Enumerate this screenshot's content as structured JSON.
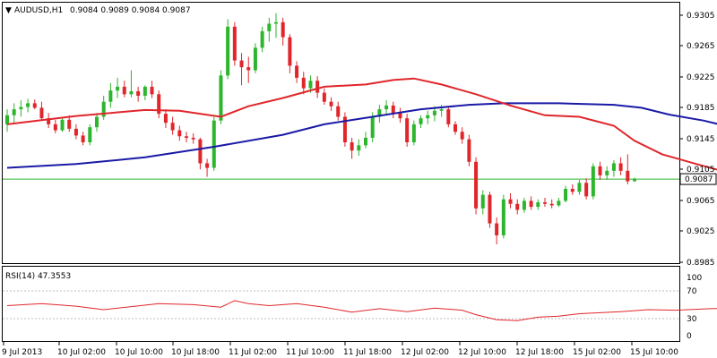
{
  "header": {
    "arrow": "▼",
    "symbol_label": "AUDUSD,H1",
    "ohlc": "0.9084 0.9089 0.9084 0.9087"
  },
  "price_axis": {
    "ticks": [
      "0.9305",
      "0.9265",
      "0.9225",
      "0.9185",
      "0.9145",
      "0.9105",
      "0.9065",
      "0.9025",
      "0.8985"
    ],
    "current_price": "0.9087"
  },
  "rsi_panel": {
    "title": "RSI(14) 47.3553",
    "ticks": [
      "100",
      "70",
      "30",
      "0"
    ]
  },
  "time_axis": {
    "labels": [
      "9 Jul 2013",
      "10 Jul 02:00",
      "10 Jul 10:00",
      "10 Jul 18:00",
      "11 Jul 02:00",
      "11 Jul 10:00",
      "11 Jul 18:00",
      "12 Jul 02:00",
      "12 Jul 10:00",
      "12 Jul 18:00",
      "15 Jul 02:00",
      "15 Jul 10:00"
    ]
  },
  "colors": {
    "bull": "#2db52d",
    "bear": "#e0262b",
    "ma_fast": "#e0262b",
    "ma_slow": "#1a1aa6",
    "rsi_line": "#e0262b",
    "price_line": "#2db52d"
  },
  "chart_data": {
    "type": "candlestick",
    "price_range": [
      0.8975,
      0.9322
    ],
    "rsi_range": [
      0,
      100
    ],
    "rsi_levels": [
      70,
      30
    ],
    "current_price": 0.9087,
    "candles": [
      [
        0.916,
        0.918,
        0.915,
        0.9172
      ],
      [
        0.9172,
        0.9188,
        0.9162,
        0.918
      ],
      [
        0.918,
        0.9192,
        0.917,
        0.9183
      ],
      [
        0.9183,
        0.9194,
        0.9176,
        0.9188
      ],
      [
        0.9188,
        0.9193,
        0.918,
        0.9182
      ],
      [
        0.9182,
        0.919,
        0.9166,
        0.9168
      ],
      [
        0.9168,
        0.9175,
        0.9155,
        0.916
      ],
      [
        0.916,
        0.9166,
        0.9148,
        0.9152
      ],
      [
        0.9152,
        0.917,
        0.915,
        0.9166
      ],
      [
        0.9166,
        0.9172,
        0.915,
        0.9154
      ],
      [
        0.9154,
        0.916,
        0.914,
        0.9145
      ],
      [
        0.9145,
        0.915,
        0.9132,
        0.9136
      ],
      [
        0.9136,
        0.916,
        0.9132,
        0.9156
      ],
      [
        0.9156,
        0.9175,
        0.915,
        0.917
      ],
      [
        0.917,
        0.9198,
        0.9166,
        0.919
      ],
      [
        0.919,
        0.9215,
        0.9182,
        0.9205
      ],
      [
        0.9205,
        0.9222,
        0.9195,
        0.921
      ],
      [
        0.921,
        0.9218,
        0.9196,
        0.92
      ],
      [
        0.92,
        0.9232,
        0.9196,
        0.9204
      ],
      [
        0.9204,
        0.921,
        0.919,
        0.9198
      ],
      [
        0.9198,
        0.9212,
        0.9192,
        0.921
      ],
      [
        0.921,
        0.9218,
        0.9195,
        0.92
      ],
      [
        0.92,
        0.9205,
        0.9168,
        0.9174
      ],
      [
        0.9174,
        0.918,
        0.9155,
        0.9162
      ],
      [
        0.9162,
        0.917,
        0.9146,
        0.9152
      ],
      [
        0.9152,
        0.9158,
        0.9138,
        0.9144
      ],
      [
        0.9144,
        0.915,
        0.9136,
        0.9142
      ],
      [
        0.9142,
        0.9148,
        0.9134,
        0.914
      ],
      [
        0.914,
        0.9142,
        0.91,
        0.9108
      ],
      [
        0.9108,
        0.9114,
        0.909,
        0.9102
      ],
      [
        0.9102,
        0.917,
        0.9098,
        0.9165
      ],
      [
        0.9165,
        0.9232,
        0.916,
        0.9225
      ],
      [
        0.9225,
        0.93,
        0.922,
        0.929
      ],
      [
        0.929,
        0.9296,
        0.9238,
        0.9245
      ],
      [
        0.9245,
        0.9255,
        0.9212,
        0.9236
      ],
      [
        0.9236,
        0.925,
        0.9215,
        0.9232
      ],
      [
        0.9232,
        0.9268,
        0.9228,
        0.9262
      ],
      [
        0.9262,
        0.929,
        0.9256,
        0.9284
      ],
      [
        0.9284,
        0.9302,
        0.927,
        0.9294
      ],
      [
        0.9294,
        0.9308,
        0.9275,
        0.9296
      ],
      [
        0.9296,
        0.9302,
        0.9265,
        0.9276
      ],
      [
        0.9276,
        0.928,
        0.9228,
        0.9238
      ],
      [
        0.9238,
        0.9244,
        0.9215,
        0.9222
      ],
      [
        0.9222,
        0.923,
        0.92,
        0.9208
      ],
      [
        0.9208,
        0.9225,
        0.9202,
        0.9218
      ],
      [
        0.9218,
        0.9224,
        0.9195,
        0.9202
      ],
      [
        0.9202,
        0.9208,
        0.9186,
        0.919
      ],
      [
        0.919,
        0.9196,
        0.9178,
        0.9184
      ],
      [
        0.9184,
        0.919,
        0.9165,
        0.917
      ],
      [
        0.917,
        0.9176,
        0.913,
        0.9136
      ],
      [
        0.9136,
        0.9142,
        0.9114,
        0.9125
      ],
      [
        0.9125,
        0.914,
        0.9118,
        0.9132
      ],
      [
        0.9132,
        0.915,
        0.9128,
        0.9142
      ],
      [
        0.9142,
        0.9176,
        0.9136,
        0.917
      ],
      [
        0.917,
        0.9186,
        0.9162,
        0.918
      ],
      [
        0.918,
        0.9192,
        0.9172,
        0.9185
      ],
      [
        0.9185,
        0.919,
        0.9168,
        0.9175
      ],
      [
        0.9175,
        0.9182,
        0.9162,
        0.9168
      ],
      [
        0.9168,
        0.9174,
        0.913,
        0.9136
      ],
      [
        0.9136,
        0.9165,
        0.9132,
        0.916
      ],
      [
        0.916,
        0.9172,
        0.9155,
        0.9168
      ],
      [
        0.9168,
        0.9178,
        0.916,
        0.9172
      ],
      [
        0.9172,
        0.9184,
        0.9164,
        0.9178
      ],
      [
        0.9178,
        0.9186,
        0.917,
        0.918
      ],
      [
        0.918,
        0.9184,
        0.9156,
        0.916
      ],
      [
        0.916,
        0.9164,
        0.9146,
        0.915
      ],
      [
        0.915,
        0.9156,
        0.9134,
        0.914
      ],
      [
        0.914,
        0.9146,
        0.9104,
        0.911
      ],
      [
        0.911,
        0.9116,
        0.904,
        0.9048
      ],
      [
        0.9048,
        0.9072,
        0.904,
        0.9066
      ],
      [
        0.9066,
        0.907,
        0.9022,
        0.9028
      ],
      [
        0.9028,
        0.9036,
        0.9,
        0.9012
      ],
      [
        0.9012,
        0.9066,
        0.9008,
        0.906
      ],
      [
        0.906,
        0.9068,
        0.9048,
        0.9054
      ],
      [
        0.9054,
        0.906,
        0.904,
        0.9046
      ],
      [
        0.9046,
        0.9062,
        0.9042,
        0.9058
      ],
      [
        0.9058,
        0.9064,
        0.9046,
        0.905
      ],
      [
        0.905,
        0.906,
        0.9046,
        0.9056
      ],
      [
        0.9056,
        0.9062,
        0.905,
        0.9054
      ],
      [
        0.9054,
        0.906,
        0.9048,
        0.9052
      ],
      [
        0.9052,
        0.9062,
        0.905,
        0.9058
      ],
      [
        0.9058,
        0.9078,
        0.9056,
        0.9074
      ],
      [
        0.9074,
        0.908,
        0.9066,
        0.907
      ],
      [
        0.907,
        0.9086,
        0.9066,
        0.9082
      ],
      [
        0.9082,
        0.9088,
        0.906,
        0.9064
      ],
      [
        0.9064,
        0.9108,
        0.906,
        0.9104
      ],
      [
        0.9104,
        0.911,
        0.9086,
        0.9092
      ],
      [
        0.9092,
        0.9104,
        0.9086,
        0.9098
      ],
      [
        0.9098,
        0.9112,
        0.909,
        0.9108
      ],
      [
        0.9108,
        0.9116,
        0.9092,
        0.9098
      ],
      [
        0.9098,
        0.912,
        0.908,
        0.9084
      ],
      [
        0.9084,
        0.9089,
        0.9084,
        0.9087
      ]
    ],
    "ma_fast": [
      [
        0,
        0.916
      ],
      [
        10,
        0.9171
      ],
      [
        20,
        0.9179
      ],
      [
        25,
        0.9178
      ],
      [
        31,
        0.917
      ],
      [
        35,
        0.9184
      ],
      [
        40,
        0.9195
      ],
      [
        46,
        0.921
      ],
      [
        52,
        0.9213
      ],
      [
        56,
        0.9219
      ],
      [
        59,
        0.9221
      ],
      [
        63,
        0.9213
      ],
      [
        68,
        0.92
      ],
      [
        73,
        0.9185
      ],
      [
        78,
        0.9172
      ],
      [
        83,
        0.917
      ],
      [
        88,
        0.9158
      ],
      [
        91,
        0.9138
      ],
      [
        95,
        0.912
      ],
      [
        100,
        0.9107
      ],
      [
        106,
        0.9092
      ],
      [
        112,
        0.9075
      ],
      [
        117,
        0.907
      ],
      [
        119,
        0.9074
      ]
    ],
    "ma_slow": [
      [
        0,
        0.9102
      ],
      [
        10,
        0.9107
      ],
      [
        20,
        0.9116
      ],
      [
        30,
        0.913
      ],
      [
        40,
        0.9146
      ],
      [
        46,
        0.916
      ],
      [
        53,
        0.917
      ],
      [
        60,
        0.918
      ],
      [
        67,
        0.9186
      ],
      [
        72,
        0.9188
      ],
      [
        80,
        0.9188
      ],
      [
        88,
        0.9186
      ],
      [
        92,
        0.9182
      ],
      [
        96,
        0.9173
      ],
      [
        101,
        0.9165
      ],
      [
        106,
        0.9154
      ],
      [
        112,
        0.9152
      ],
      [
        116,
        0.9146
      ],
      [
        119,
        0.9141
      ]
    ],
    "rsi": [
      [
        0,
        58
      ],
      [
        5,
        62
      ],
      [
        10,
        57
      ],
      [
        14,
        50
      ],
      [
        18,
        56
      ],
      [
        22,
        62
      ],
      [
        27,
        60
      ],
      [
        31,
        55
      ],
      [
        33,
        68
      ],
      [
        35,
        62
      ],
      [
        38,
        58
      ],
      [
        42,
        62
      ],
      [
        46,
        55
      ],
      [
        50,
        45
      ],
      [
        54,
        52
      ],
      [
        58,
        46
      ],
      [
        62,
        53
      ],
      [
        66,
        49
      ],
      [
        68,
        40
      ],
      [
        71,
        30
      ],
      [
        74,
        28
      ],
      [
        77,
        35
      ],
      [
        80,
        37
      ],
      [
        83,
        42
      ],
      [
        86,
        44
      ],
      [
        89,
        46
      ],
      [
        93,
        50
      ],
      [
        97,
        49
      ],
      [
        102,
        52
      ],
      [
        106,
        53
      ],
      [
        110,
        50
      ],
      [
        114,
        48
      ],
      [
        119,
        47
      ]
    ]
  }
}
